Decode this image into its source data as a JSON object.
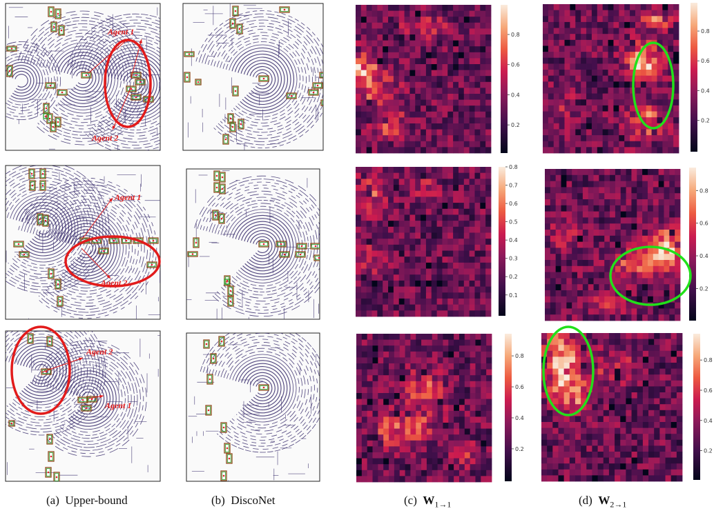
{
  "captions": {
    "a": {
      "label": "(a)",
      "text": "Upper-bound"
    },
    "b": {
      "label": "(b)",
      "text": "DiscoNet"
    },
    "c": {
      "label": "(c)",
      "sym": "W",
      "sub": "1→1"
    },
    "d": {
      "label": "(d)",
      "sym": "W",
      "sub": "2→1"
    }
  },
  "annotations": {
    "agent1": "Agent 1",
    "agent2": "Agent 2"
  },
  "colorbars": {
    "row1_c": [
      "0.8",
      "0.6",
      "0.4",
      "0.2"
    ],
    "row1_d": [
      "0.8",
      "0.6",
      "0.4",
      "0.2"
    ],
    "row2_c": [
      "0.8",
      "0.7",
      "0.6",
      "0.5",
      "0.4",
      "0.3",
      "0.2",
      "0.1"
    ],
    "row2_d": [
      "0.8",
      "0.6",
      "0.4",
      "0.2"
    ],
    "row3_c": [
      "0.8",
      "0.6",
      "0.4",
      "0.2"
    ],
    "row3_d": [
      "0.8",
      "0.6",
      "0.4",
      "0.2"
    ]
  },
  "colors": {
    "highlight_red": "#e21b1b",
    "highlight_green": "#22e01a",
    "lidar": "#3b2f6e",
    "box_brown": "#8b4a1a",
    "box_green": "#2aa12a"
  }
}
